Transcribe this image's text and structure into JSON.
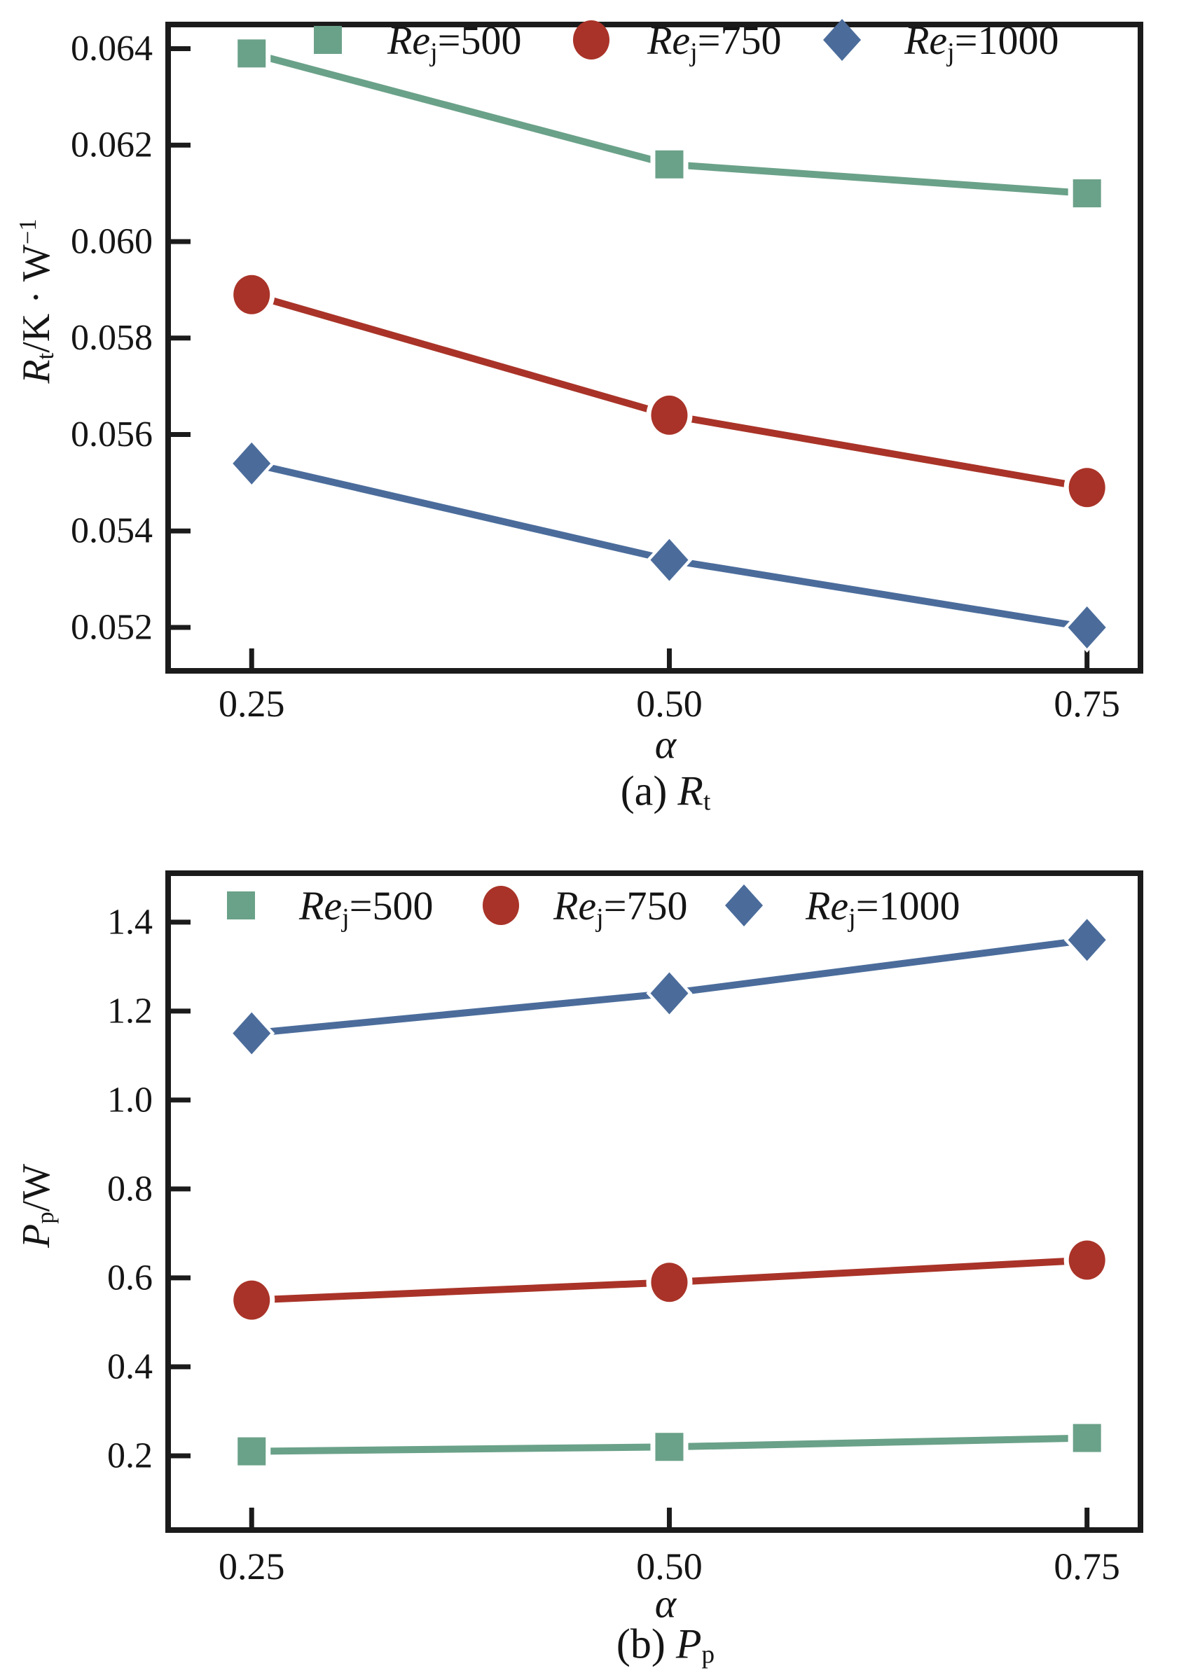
{
  "figure": {
    "background": "#ffffff",
    "text_color": "#151515",
    "axis_color": "#1b1b1b",
    "marker_colors": {
      "green": "#6aa189",
      "red": "#a93328",
      "blue": "#4b6c9b"
    }
  },
  "chart_data": [
    {
      "id": "a",
      "type": "line",
      "title": "(a) Rt",
      "xlabel": "α",
      "ylabel": {
        "symbol": "R",
        "subscript": "t",
        "rest": "/K · W",
        "superscript": "−1"
      },
      "caption": {
        "prefix": "(a) ",
        "symbol": "R",
        "subscript": "t"
      },
      "x": [
        0.25,
        0.5,
        0.75
      ],
      "x_tick_labels": [
        "0.25",
        "0.50",
        "0.75"
      ],
      "xlim": [
        0.2,
        0.782
      ],
      "y_ticks": [
        0.064,
        0.062,
        0.06,
        0.058,
        0.056,
        0.054,
        0.052
      ],
      "y_tick_labels": [
        "0.064",
        "0.062",
        "0.060",
        "0.058",
        "0.056",
        "0.054",
        "0.052"
      ],
      "ylim": [
        0.0511,
        0.0645
      ],
      "grid": false,
      "legend_position": "top-inside",
      "series": [
        {
          "name": "Re_j=500",
          "label": {
            "main": "Re",
            "sub": "j",
            "rest": "=500"
          },
          "marker": "square",
          "color": "#6aa189",
          "values": [
            0.0639,
            0.0616,
            0.061
          ]
        },
        {
          "name": "Re_j=750",
          "label": {
            "main": "Re",
            "sub": "j",
            "rest": "=750"
          },
          "marker": "circle",
          "color": "#a93328",
          "values": [
            0.0589,
            0.0564,
            0.0549
          ]
        },
        {
          "name": "Re_j=1000",
          "label": {
            "main": "Re",
            "sub": "j",
            "rest": "=1000"
          },
          "marker": "diamond",
          "color": "#4b6c9b",
          "values": [
            0.0554,
            0.0534,
            0.052
          ]
        }
      ]
    },
    {
      "id": "b",
      "type": "line",
      "title": "(b) Pp",
      "xlabel": "α",
      "ylabel": {
        "symbol": "P",
        "subscript": "p",
        "rest": "/W",
        "superscript": ""
      },
      "caption": {
        "prefix": "(b) ",
        "symbol": "P",
        "subscript": "p"
      },
      "x": [
        0.25,
        0.5,
        0.75
      ],
      "x_tick_labels": [
        "0.25",
        "0.50",
        "0.75"
      ],
      "xlim": [
        0.2,
        0.782
      ],
      "y_ticks": [
        1.4,
        1.2,
        1.0,
        0.8,
        0.6,
        0.4,
        0.2
      ],
      "y_tick_labels": [
        "1.4",
        "1.2",
        "1.0",
        "0.8",
        "0.6",
        "0.4",
        "0.2"
      ],
      "ylim": [
        0.033,
        1.51
      ],
      "grid": false,
      "legend_position": "top-inside",
      "series": [
        {
          "name": "Re_j=500",
          "label": {
            "main": "Re",
            "sub": "j",
            "rest": "=500"
          },
          "marker": "square",
          "color": "#6aa189",
          "values": [
            0.21,
            0.22,
            0.24
          ]
        },
        {
          "name": "Re_j=750",
          "label": {
            "main": "Re",
            "sub": "j",
            "rest": "=750"
          },
          "marker": "circle",
          "color": "#a93328",
          "values": [
            0.55,
            0.59,
            0.64
          ]
        },
        {
          "name": "Re_j=1000",
          "label": {
            "main": "Re",
            "sub": "j",
            "rest": "=1000"
          },
          "marker": "diamond",
          "color": "#4b6c9b",
          "values": [
            1.15,
            1.24,
            1.36
          ]
        }
      ]
    }
  ]
}
